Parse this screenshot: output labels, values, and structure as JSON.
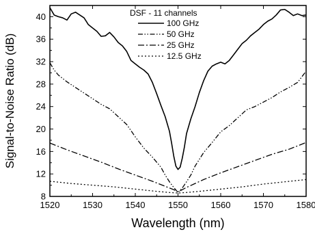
{
  "chart_data": {
    "type": "line",
    "xlabel": "Wavelength (nm)",
    "ylabel": "Signal-to-Noise Ratio (dB)",
    "xlim": [
      1520,
      1580
    ],
    "ylim": [
      8,
      42
    ],
    "xticks": [
      1520,
      1530,
      1540,
      1550,
      1560,
      1570,
      1580
    ],
    "yticks": [
      8,
      12,
      16,
      20,
      24,
      28,
      32,
      36,
      40
    ],
    "legend_title": "DSF - 11 channels",
    "legend_position": "top-center",
    "grid": false,
    "series": [
      {
        "name": "100 GHz",
        "dash": "solid",
        "x": [
          1520,
          1521,
          1522,
          1523,
          1524,
          1525,
          1526,
          1527,
          1528,
          1529,
          1530,
          1531,
          1532,
          1533,
          1534,
          1535,
          1536,
          1537,
          1538,
          1539,
          1540,
          1541,
          1542,
          1543,
          1544,
          1545,
          1546,
          1547,
          1548,
          1548.5,
          1549,
          1549.5,
          1550,
          1550.5,
          1551,
          1551.5,
          1552,
          1553,
          1554,
          1555,
          1556,
          1557,
          1558,
          1559,
          1560,
          1561,
          1562,
          1563,
          1564,
          1565,
          1566,
          1567,
          1568,
          1569,
          1570,
          1571,
          1572,
          1573,
          1574,
          1575,
          1576,
          1577,
          1578,
          1579,
          1580
        ],
        "values": [
          41.6,
          40.3,
          40.0,
          39.8,
          39.4,
          40.5,
          40.8,
          40.3,
          39.8,
          38.6,
          38.0,
          37.4,
          36.5,
          36.6,
          37.2,
          36.4,
          35.4,
          34.8,
          33.8,
          32.2,
          31.6,
          31.0,
          30.5,
          29.8,
          28.3,
          26.3,
          24.2,
          22.2,
          19.6,
          17.5,
          15.2,
          13.4,
          12.8,
          13.2,
          14.8,
          16.8,
          19.2,
          21.8,
          24.0,
          26.5,
          28.6,
          30.3,
          31.2,
          31.6,
          31.9,
          31.6,
          32.2,
          33.2,
          34.2,
          35.2,
          35.8,
          36.6,
          37.2,
          37.8,
          38.6,
          39.2,
          39.6,
          40.3,
          41.2,
          41.3,
          40.8,
          40.2,
          40.5,
          40.2,
          40.3
        ]
      },
      {
        "name": "50 GHz",
        "dash": "dash-dot-dot",
        "x": [
          1520,
          1521,
          1522,
          1524,
          1526,
          1528,
          1530,
          1532,
          1534,
          1536,
          1538,
          1540,
          1542,
          1544,
          1546,
          1547,
          1548,
          1549,
          1550,
          1551,
          1552,
          1553,
          1554,
          1556,
          1558,
          1560,
          1562,
          1564,
          1566,
          1568,
          1570,
          1572,
          1574,
          1576,
          1578,
          1580
        ],
        "values": [
          31.8,
          30.5,
          29.6,
          28.4,
          27.4,
          26.4,
          25.4,
          24.4,
          23.6,
          22.2,
          20.8,
          18.6,
          16.6,
          15.0,
          13.2,
          11.8,
          10.6,
          9.6,
          8.7,
          9.5,
          10.6,
          11.8,
          13.4,
          15.8,
          17.6,
          19.5,
          20.6,
          22.0,
          23.4,
          24.0,
          24.8,
          25.6,
          26.6,
          27.4,
          28.3,
          30.3
        ]
      },
      {
        "name": "25 GHz",
        "dash": "dash-dot",
        "x": [
          1520,
          1524,
          1528,
          1532,
          1536,
          1540,
          1544,
          1546,
          1548,
          1549,
          1550,
          1551,
          1552,
          1554,
          1556,
          1560,
          1564,
          1568,
          1572,
          1576,
          1580
        ],
        "values": [
          17.5,
          16.3,
          15.2,
          14.1,
          12.9,
          11.8,
          10.7,
          10.1,
          9.5,
          9.2,
          8.8,
          9.2,
          9.6,
          10.3,
          11.0,
          12.2,
          13.3,
          14.4,
          15.5,
          16.4,
          17.6
        ]
      },
      {
        "name": "12.5 GHz",
        "dash": "dotted",
        "x": [
          1520,
          1525,
          1530,
          1535,
          1540,
          1545,
          1548,
          1550,
          1552,
          1555,
          1560,
          1565,
          1570,
          1575,
          1580
        ],
        "values": [
          10.7,
          10.3,
          10.0,
          9.7,
          9.3,
          8.9,
          8.7,
          8.6,
          8.7,
          8.9,
          9.3,
          9.7,
          10.2,
          10.6,
          11.0
        ]
      }
    ]
  }
}
